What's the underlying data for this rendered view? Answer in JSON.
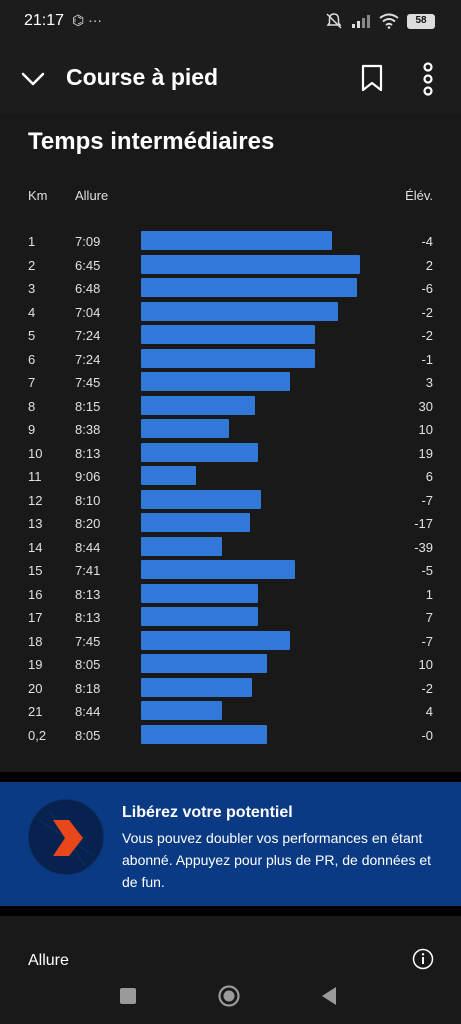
{
  "status": {
    "time": "21:17",
    "left_icons": "⌬ ···",
    "battery": "58"
  },
  "header": {
    "title": "Course à pied"
  },
  "splits": {
    "title": "Temps intermédiaires",
    "col_km": "Km",
    "col_pace": "Allure",
    "col_elev": "Élév.",
    "rows": [
      {
        "km": "1",
        "pace": "7:09",
        "elev": "-4"
      },
      {
        "km": "2",
        "pace": "6:45",
        "elev": "2"
      },
      {
        "km": "3",
        "pace": "6:48",
        "elev": "-6"
      },
      {
        "km": "4",
        "pace": "7:04",
        "elev": "-2"
      },
      {
        "km": "5",
        "pace": "7:24",
        "elev": "-2"
      },
      {
        "km": "6",
        "pace": "7:24",
        "elev": "-1"
      },
      {
        "km": "7",
        "pace": "7:45",
        "elev": "3"
      },
      {
        "km": "8",
        "pace": "8:15",
        "elev": "30"
      },
      {
        "km": "9",
        "pace": "8:38",
        "elev": "10"
      },
      {
        "km": "10",
        "pace": "8:13",
        "elev": "19"
      },
      {
        "km": "11",
        "pace": "9:06",
        "elev": "6"
      },
      {
        "km": "12",
        "pace": "8:10",
        "elev": "-7"
      },
      {
        "km": "13",
        "pace": "8:20",
        "elev": "-17"
      },
      {
        "km": "14",
        "pace": "8:44",
        "elev": "-39"
      },
      {
        "km": "15",
        "pace": "7:41",
        "elev": "-5"
      },
      {
        "km": "16",
        "pace": "8:13",
        "elev": "1"
      },
      {
        "km": "17",
        "pace": "8:13",
        "elev": "7"
      },
      {
        "km": "18",
        "pace": "7:45",
        "elev": "-7"
      },
      {
        "km": "19",
        "pace": "8:05",
        "elev": "10"
      },
      {
        "km": "20",
        "pace": "8:18",
        "elev": "-2"
      },
      {
        "km": "21",
        "pace": "8:44",
        "elev": "4"
      },
      {
        "km": "0,2",
        "pace": "8:05",
        "elev": "-0"
      }
    ],
    "bar_color": "#3178d8"
  },
  "promo": {
    "title": "Libérez votre potentiel",
    "body": "Vous pouvez doubler vos performances en étant abonné. Appuyez pour plus de PR, de données et de fun.",
    "accent": "#e8471c"
  },
  "section": {
    "label": "Allure"
  }
}
